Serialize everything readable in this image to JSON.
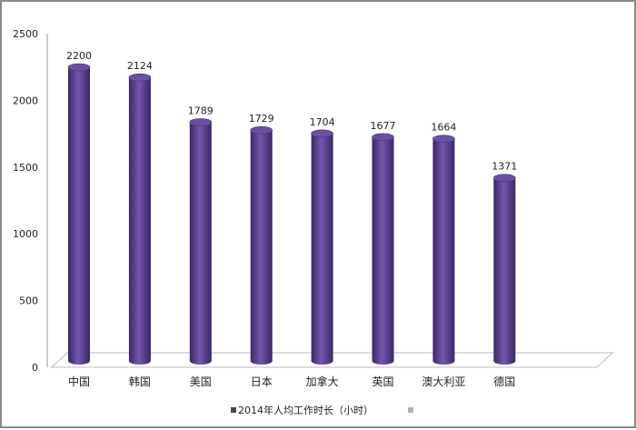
{
  "chart_data": {
    "type": "bar",
    "categories": [
      "中国",
      "韩国",
      "美国",
      "日本",
      "加拿大",
      "英国",
      "澳大利亚",
      "德国"
    ],
    "series": [
      {
        "name": "2014年人均工作时长（小时）",
        "values": [
          2200,
          2124,
          1789,
          1729,
          1704,
          1677,
          1664,
          1371
        ]
      }
    ],
    "ylim": [
      0,
      2500
    ],
    "yticks": [
      0,
      500,
      1000,
      1500,
      2000,
      2500
    ],
    "grid": false,
    "legend": "bottom",
    "bar_style": "3d-cylinder",
    "colors": {
      "bar": "#5a3e8e",
      "bar_light": "#8a6cc0",
      "bar_dark": "#3a2766",
      "legend_empty": "#b0b0b0"
    }
  }
}
